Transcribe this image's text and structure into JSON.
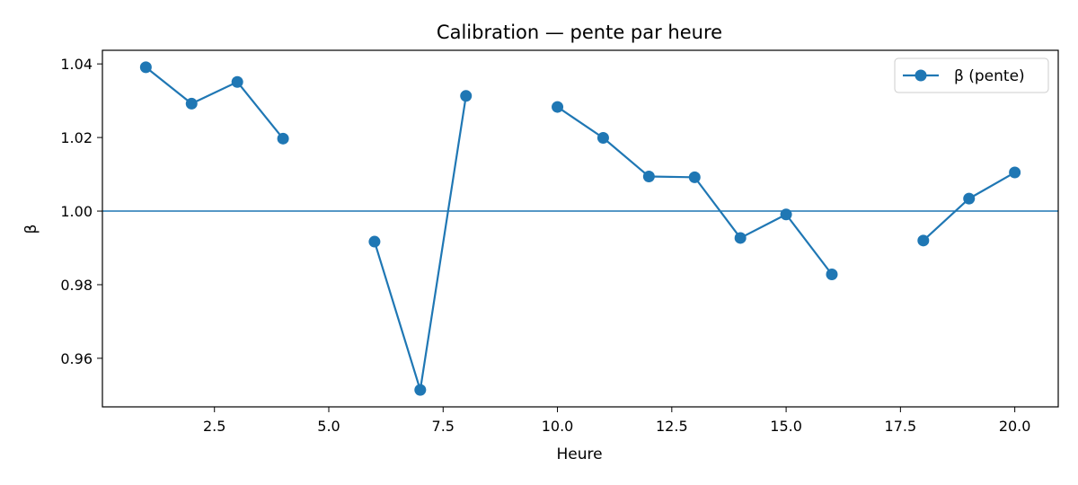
{
  "chart_data": {
    "type": "line",
    "title": "Calibration — pente par heure",
    "xlabel": "Heure",
    "ylabel": "β",
    "xlim": [
      0.05,
      20.95
    ],
    "ylim": [
      0.9468,
      1.0437
    ],
    "xticks": [
      2.5,
      5.0,
      7.5,
      10.0,
      12.5,
      15.0,
      17.5,
      20.0
    ],
    "xtick_labels": [
      "2.5",
      "5.0",
      "7.5",
      "10.0",
      "12.5",
      "15.0",
      "17.5",
      "20.0"
    ],
    "yticks": [
      0.96,
      0.98,
      1.0,
      1.02,
      1.04
    ],
    "ytick_labels": [
      "0.96",
      "0.98",
      "1.00",
      "1.02",
      "1.04"
    ],
    "reference_line": {
      "y": 1.0
    },
    "legend": {
      "position": "top-right"
    },
    "grid": false,
    "series": [
      {
        "name": "β (pente)",
        "color": "#1f77b4",
        "marker": "circle",
        "x": [
          1,
          2,
          3,
          4,
          5,
          6,
          7,
          8,
          9,
          10,
          11,
          12,
          13,
          14,
          15,
          16,
          17,
          18,
          19,
          20
        ],
        "y": [
          1.0391,
          1.0292,
          1.0351,
          1.0197,
          null,
          0.9917,
          0.9514,
          1.0313,
          null,
          1.0283,
          1.0199,
          1.0094,
          1.0092,
          0.9927,
          0.9991,
          0.9828,
          null,
          0.992,
          1.0034,
          1.0105
        ]
      }
    ]
  }
}
